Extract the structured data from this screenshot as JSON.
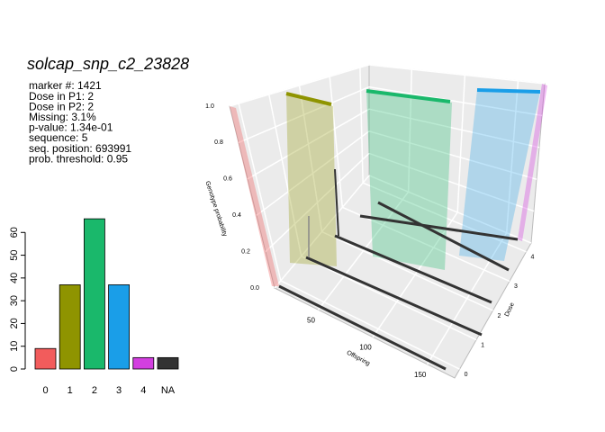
{
  "chart_data": [
    {
      "type": "bar",
      "title": "solcap_snp_c2_23828",
      "annotations": [
        "marker #: 1421",
        "Dose in P1: 2",
        "Dose in P2: 2",
        "Missing: 3.1%",
        "p-value: 1.34e-01",
        "sequence: 5",
        "seq. position: 693991",
        "prob. threshold: 0.95"
      ],
      "categories": [
        "0",
        "1",
        "2",
        "3",
        "4",
        "NA"
      ],
      "values": [
        9,
        37,
        66,
        37,
        5,
        5
      ],
      "colors": [
        "#f25c5c",
        "#8f9400",
        "#1ab86b",
        "#1a9ee8",
        "#d33fe0",
        "#333333"
      ],
      "ylim": [
        0,
        70
      ],
      "yticks": [
        0,
        10,
        20,
        30,
        40,
        50,
        60
      ]
    },
    {
      "type": "3d",
      "xlabel": "Offspring",
      "ylabel": "Dose",
      "zlabel": "Genotype probability",
      "xlim": [
        10,
        175
      ],
      "xticks": [
        50,
        100,
        150
      ],
      "ylim": [
        -0.3,
        4.3
      ],
      "yticks": [
        0,
        1,
        2,
        3,
        4
      ],
      "zlim": [
        0,
        1
      ],
      "zticks": [
        {
          "value": 0,
          "label": "0.0"
        },
        {
          "value": 0.2,
          "label": "0.2"
        },
        {
          "value": 0.4,
          "label": "0.4"
        },
        {
          "value": 0.6,
          "label": "0.6"
        },
        {
          "value": 0.8,
          "label": "0.8"
        },
        {
          "value": 1,
          "label": "1.0"
        }
      ]
    }
  ]
}
